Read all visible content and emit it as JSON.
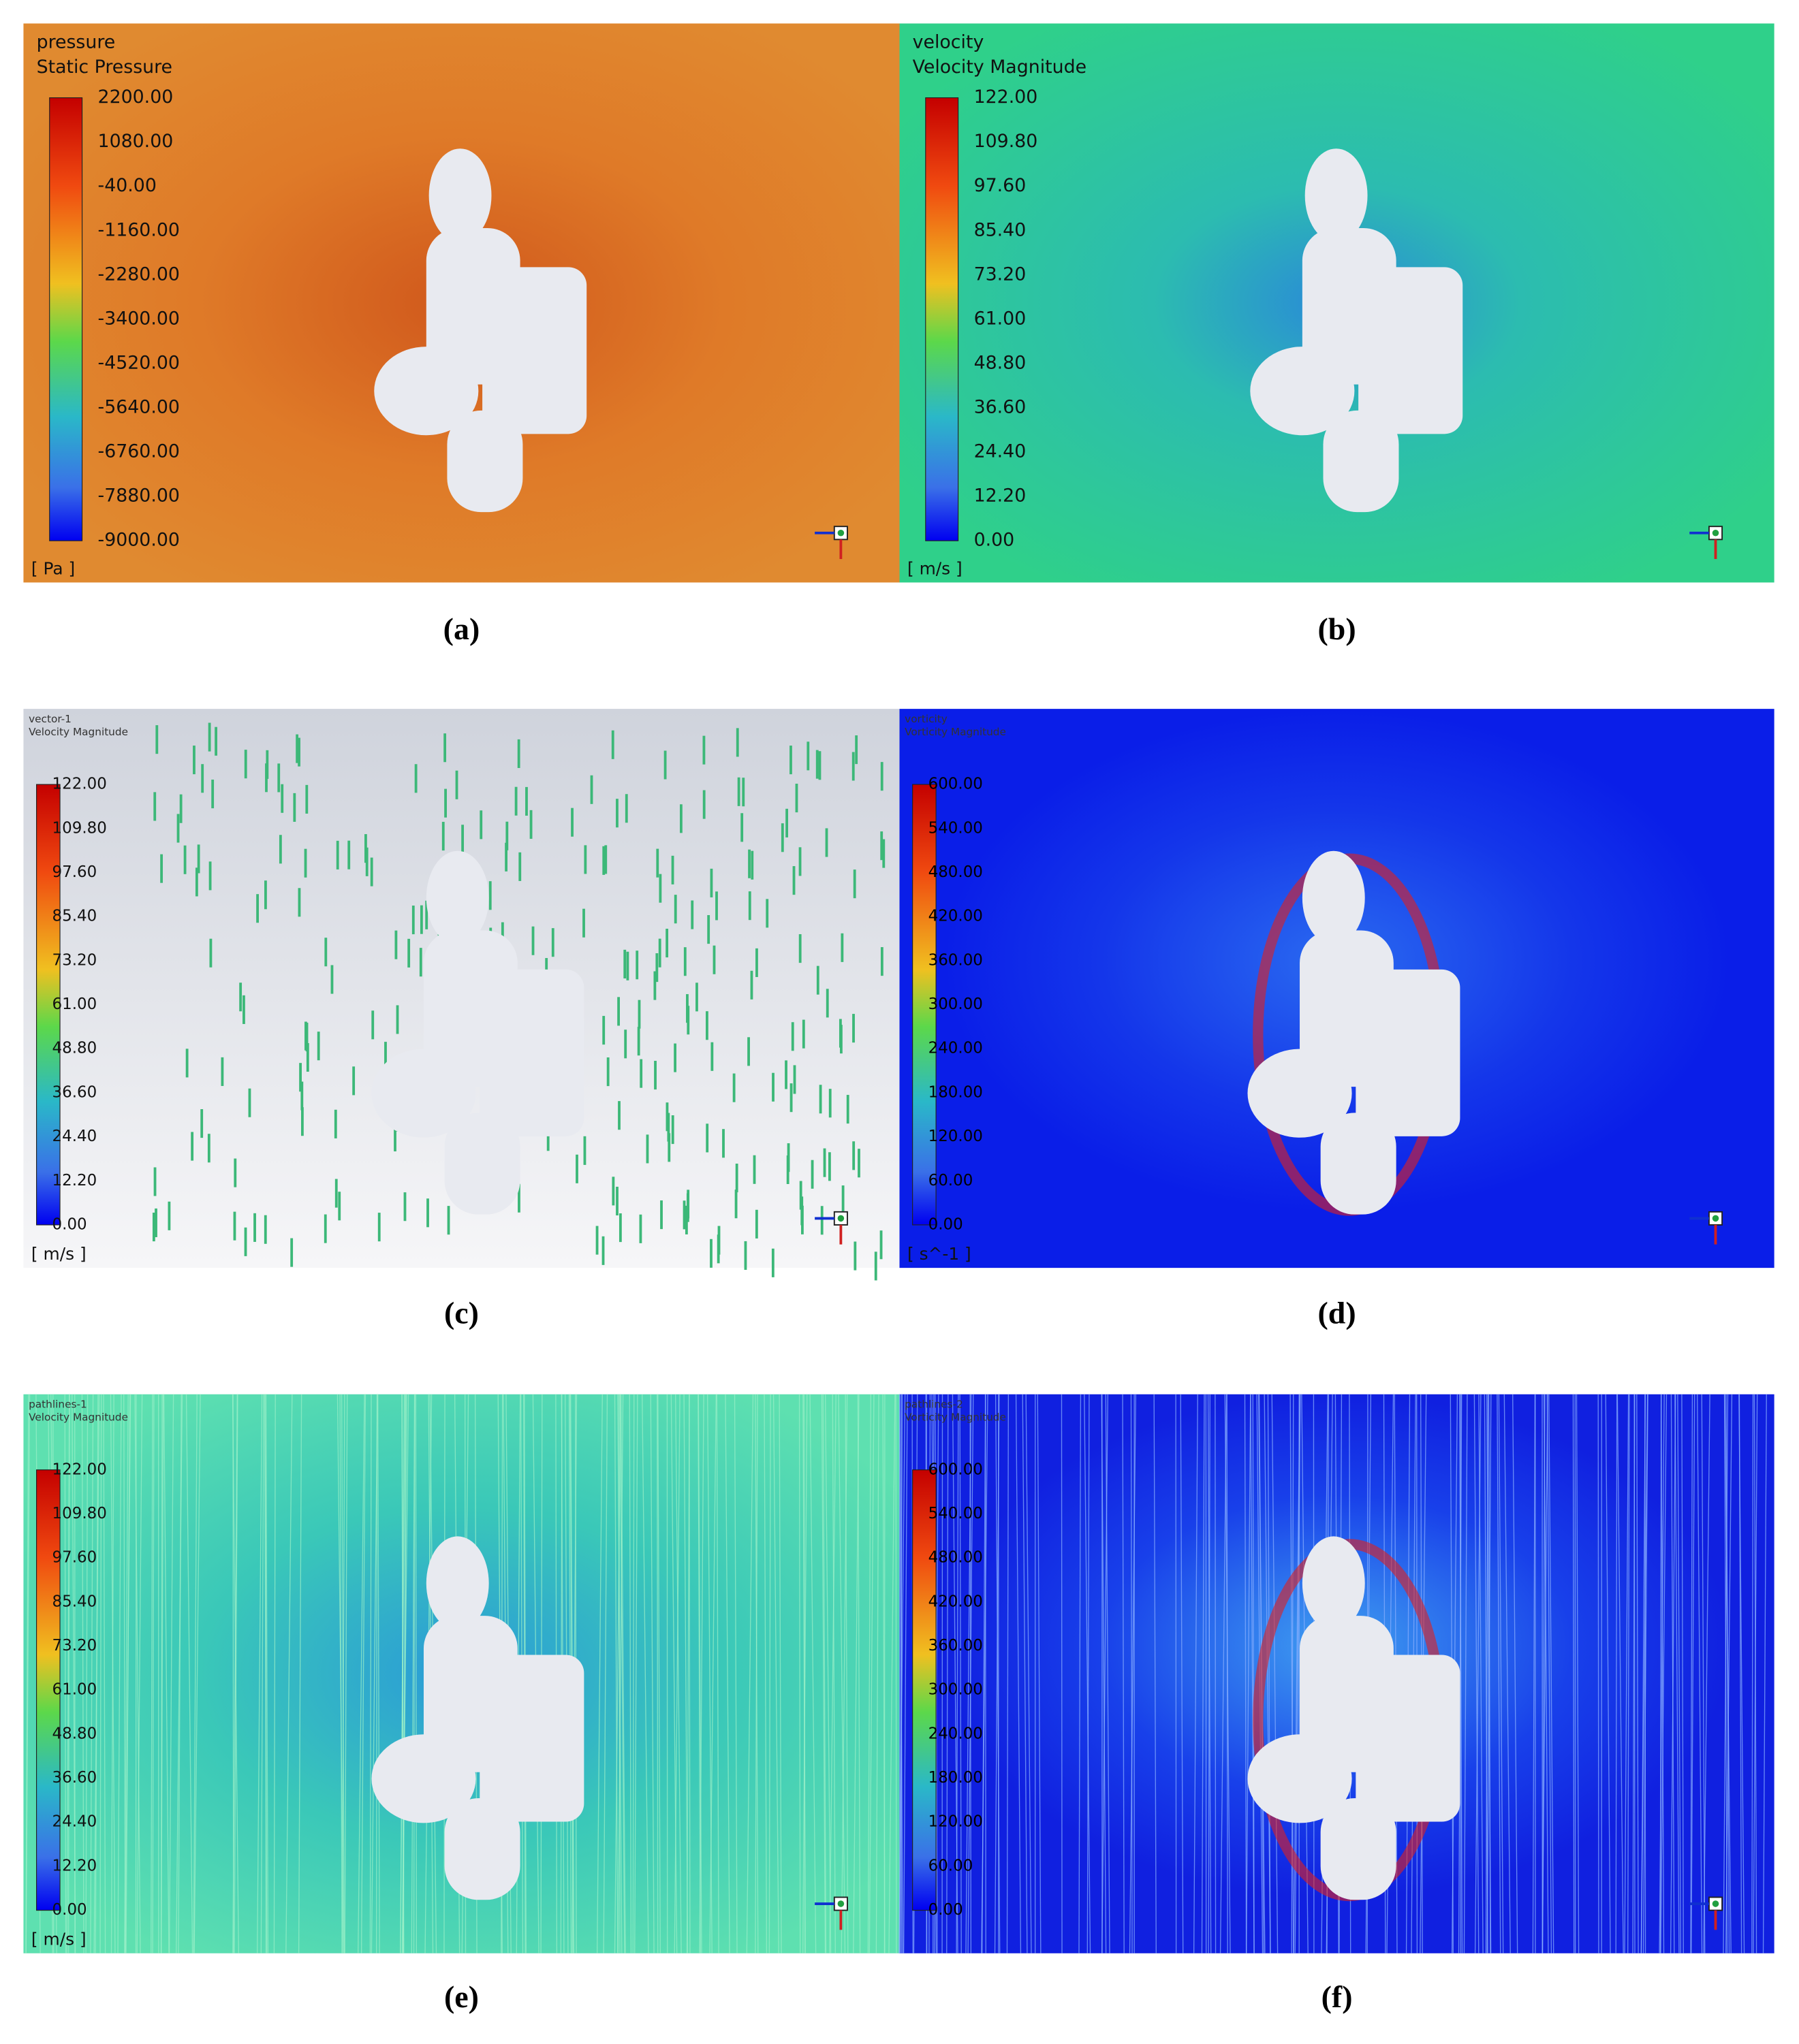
{
  "panels": [
    {
      "title": [
        "pressure",
        "Static Pressure"
      ],
      "ticks": [
        "2200.00",
        "1080.00",
        "-40.00",
        "-1160.00",
        "-2280.00",
        "-3400.00",
        "-4520.00",
        "-5640.00",
        "-6760.00",
        "-7880.00",
        "-9000.00"
      ],
      "unit": "[ Pa ]",
      "caption": "(a)"
    },
    {
      "title": [
        "velocity",
        "Velocity Magnitude"
      ],
      "ticks": [
        "122.00",
        "109.80",
        "97.60",
        "85.40",
        "73.20",
        "61.00",
        "48.80",
        "36.60",
        "24.40",
        "12.20",
        "0.00"
      ],
      "unit": "[ m/s ]",
      "caption": "(b)"
    },
    {
      "title": [
        "vector-1",
        "Velocity Magnitude"
      ],
      "ticks": [
        "122.00",
        "109.80",
        "97.60",
        "85.40",
        "73.20",
        "61.00",
        "48.80",
        "36.60",
        "24.40",
        "12.20",
        "0.00"
      ],
      "unit": "[ m/s ]",
      "caption": "(c)"
    },
    {
      "title": [
        "vorticity",
        "Vorticity Magnitude"
      ],
      "ticks": [
        "600.00",
        "540.00",
        "480.00",
        "420.00",
        "360.00",
        "300.00",
        "240.00",
        "180.00",
        "120.00",
        "60.00",
        "0.00"
      ],
      "unit": "[ s^-1 ]",
      "caption": "(d)"
    },
    {
      "title": [
        "pathlines-1",
        "Velocity Magnitude"
      ],
      "ticks": [
        "122.00",
        "109.80",
        "97.60",
        "85.40",
        "73.20",
        "61.00",
        "48.80",
        "36.60",
        "24.40",
        "12.20",
        "0.00"
      ],
      "unit": "[ m/s ]",
      "caption": "(e)"
    },
    {
      "title": [
        "pathlines-2",
        "Vorticity Magnitude"
      ],
      "ticks": [
        "600.00",
        "540.00",
        "480.00",
        "420.00",
        "360.00",
        "300.00",
        "240.00",
        "180.00",
        "120.00",
        "60.00",
        "0.00"
      ],
      "caption": "(f)"
    }
  ]
}
